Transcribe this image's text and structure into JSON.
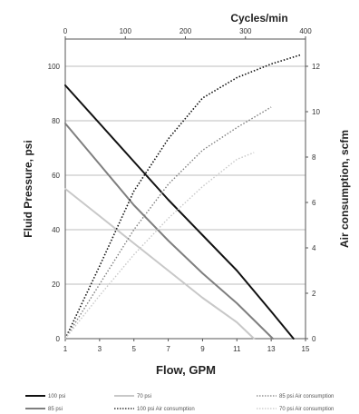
{
  "chart_data": {
    "type": "line",
    "title": "",
    "xlabel": "Flow, GPM",
    "x_top_label": "Cycles/min",
    "ylabel": "Fluid Pressure, psi",
    "y2label": "Air consumption, scfm",
    "xlim": [
      1,
      15
    ],
    "x_top_lim": [
      0,
      400
    ],
    "ylim": [
      0,
      110
    ],
    "y2lim": [
      0,
      13.2
    ],
    "x_ticks": [
      1,
      3,
      5,
      7,
      9,
      11,
      13,
      15
    ],
    "x_top_ticks": [
      0,
      100,
      200,
      300,
      400
    ],
    "y_ticks": [
      0,
      20,
      40,
      60,
      80,
      100
    ],
    "y2_ticks": [
      0,
      2,
      4,
      6,
      8,
      10,
      12
    ],
    "grid": true,
    "legend_position": "bottom",
    "series": [
      {
        "name": "100 psi",
        "axis": "left",
        "style": "solid",
        "color": "#111111",
        "width": 2,
        "points": [
          [
            1,
            93
          ],
          [
            3,
            79
          ],
          [
            5,
            65
          ],
          [
            7,
            51
          ],
          [
            9,
            38
          ],
          [
            11,
            25
          ],
          [
            13,
            10
          ],
          [
            14.3,
            0
          ]
        ]
      },
      {
        "name": "85 psi",
        "axis": "left",
        "style": "solid",
        "color": "#7f7f7f",
        "width": 2,
        "points": [
          [
            1,
            79
          ],
          [
            3,
            64
          ],
          [
            5,
            49
          ],
          [
            7,
            36
          ],
          [
            9,
            24
          ],
          [
            11,
            13
          ],
          [
            13.1,
            0
          ]
        ]
      },
      {
        "name": "70 psi",
        "axis": "left",
        "style": "solid",
        "color": "#c8c8c8",
        "width": 2,
        "points": [
          [
            1,
            55
          ],
          [
            3,
            45
          ],
          [
            5,
            35
          ],
          [
            7,
            25
          ],
          [
            9,
            15
          ],
          [
            11,
            6
          ],
          [
            12,
            0
          ]
        ]
      },
      {
        "name": "100 psi Air consumption",
        "axis": "right",
        "style": "dotted",
        "color": "#111111",
        "width": 1.6,
        "points": [
          [
            1,
            0
          ],
          [
            3,
            3.2
          ],
          [
            5,
            6.5
          ],
          [
            7,
            8.8
          ],
          [
            9,
            10.6
          ],
          [
            11,
            11.5
          ],
          [
            13,
            12.1
          ],
          [
            14.7,
            12.5
          ]
        ]
      },
      {
        "name": "85 psi Air consumption",
        "axis": "right",
        "style": "dotted",
        "color": "#7f7f7f",
        "width": 1.4,
        "points": [
          [
            1,
            0
          ],
          [
            3,
            2.4
          ],
          [
            5,
            4.8
          ],
          [
            7,
            6.8
          ],
          [
            9,
            8.3
          ],
          [
            11,
            9.3
          ],
          [
            13,
            10.2
          ]
        ]
      },
      {
        "name": "70 psi Air consumption",
        "axis": "right",
        "style": "dotted",
        "color": "#c8c8c8",
        "width": 1.4,
        "points": [
          [
            1,
            0
          ],
          [
            3,
            1.9
          ],
          [
            5,
            3.7
          ],
          [
            7,
            5.3
          ],
          [
            9,
            6.7
          ],
          [
            11,
            7.9
          ],
          [
            12,
            8.2
          ]
        ]
      }
    ],
    "legend": [
      [
        "100 psi",
        "70 psi",
        "85 psi Air consumption"
      ],
      [
        "85 psi",
        "100 psi Air consumption",
        "70 psi Air consumption"
      ]
    ]
  }
}
